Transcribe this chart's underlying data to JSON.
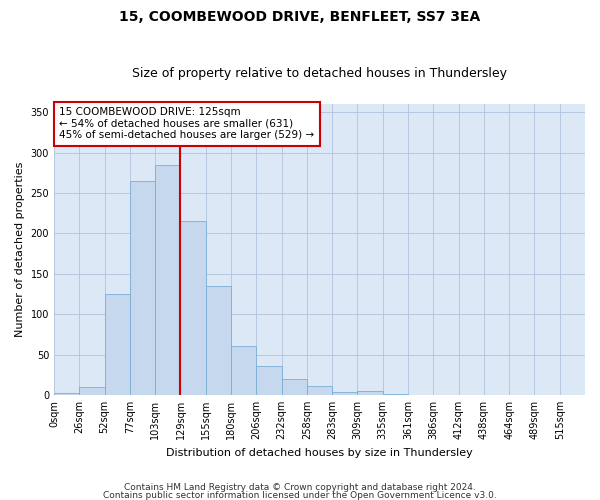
{
  "title": "15, COOMBEWOOD DRIVE, BENFLEET, SS7 3EA",
  "subtitle": "Size of property relative to detached houses in Thundersley",
  "xlabel": "Distribution of detached houses by size in Thundersley",
  "ylabel": "Number of detached properties",
  "bar_labels": [
    "0sqm",
    "26sqm",
    "52sqm",
    "77sqm",
    "103sqm",
    "129sqm",
    "155sqm",
    "180sqm",
    "206sqm",
    "232sqm",
    "258sqm",
    "283sqm",
    "309sqm",
    "335sqm",
    "361sqm",
    "386sqm",
    "412sqm",
    "438sqm",
    "464sqm",
    "489sqm",
    "515sqm"
  ],
  "bar_heights": [
    2,
    10,
    125,
    265,
    285,
    215,
    135,
    60,
    36,
    20,
    11,
    4,
    5,
    1,
    0,
    0,
    0,
    0,
    0,
    0,
    0
  ],
  "bar_color": "#c5d8ee",
  "bar_edge_color": "#7aadd4",
  "vline_x": 5.0,
  "vline_color": "#cc0000",
  "annotation_text": "15 COOMBEWOOD DRIVE: 125sqm\n← 54% of detached houses are smaller (631)\n45% of semi-detached houses are larger (529) →",
  "annotation_box_color": "#ffffff",
  "annotation_box_edge": "#cc0000",
  "ylim": [
    0,
    360
  ],
  "yticks": [
    0,
    50,
    100,
    150,
    200,
    250,
    300,
    350
  ],
  "footer1": "Contains HM Land Registry data © Crown copyright and database right 2024.",
  "footer2": "Contains public sector information licensed under the Open Government Licence v3.0.",
  "plot_bg_color": "#dce8f5",
  "fig_bg_color": "#ffffff",
  "grid_color": "#b0c4de",
  "title_fontsize": 10,
  "subtitle_fontsize": 9,
  "axis_label_fontsize": 8,
  "tick_fontsize": 7,
  "annotation_fontsize": 7.5,
  "footer_fontsize": 6.5
}
